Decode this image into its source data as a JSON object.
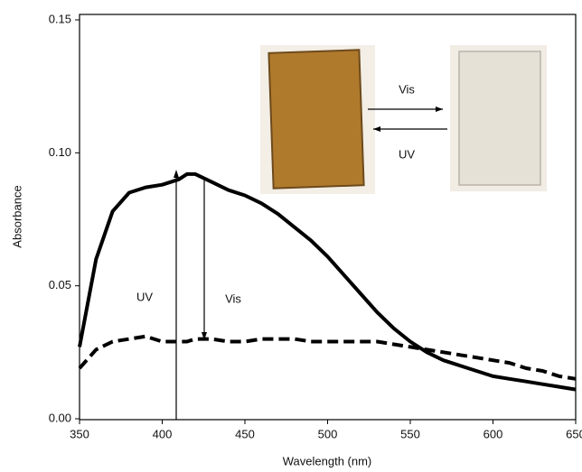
{
  "chart_data": {
    "type": "line",
    "xlabel": "Wavelength (nm)",
    "ylabel": "Absorbance",
    "x": [
      350,
      360,
      370,
      380,
      390,
      400,
      410,
      415,
      420,
      430,
      440,
      450,
      460,
      470,
      480,
      490,
      500,
      510,
      520,
      530,
      540,
      550,
      560,
      570,
      580,
      590,
      600,
      610,
      620,
      630,
      640,
      650
    ],
    "series": [
      {
        "color": "#000000",
        "line_style": "solid",
        "values": [
          0.027,
          0.06,
          0.078,
          0.085,
          0.087,
          0.088,
          0.09,
          0.092,
          0.092,
          0.089,
          0.086,
          0.084,
          0.081,
          0.077,
          0.072,
          0.067,
          0.061,
          0.054,
          0.047,
          0.04,
          0.034,
          0.029,
          0.025,
          0.022,
          0.02,
          0.018,
          0.016,
          0.015,
          0.014,
          0.013,
          0.012,
          0.011
        ]
      },
      {
        "color": "#000000",
        "line_style": "dashed",
        "values": [
          0.019,
          0.026,
          0.029,
          0.03,
          0.031,
          0.029,
          0.029,
          0.029,
          0.03,
          0.03,
          0.029,
          0.029,
          0.03,
          0.03,
          0.03,
          0.029,
          0.029,
          0.029,
          0.029,
          0.029,
          0.028,
          0.027,
          0.026,
          0.025,
          0.024,
          0.023,
          0.022,
          0.021,
          0.019,
          0.018,
          0.016,
          0.015
        ]
      }
    ],
    "xlim": [
      350,
      650
    ],
    "ylim": [
      0,
      0.15
    ],
    "xticks": [
      350,
      400,
      450,
      500,
      550,
      600,
      650
    ],
    "yticks": [
      {
        "value": 0,
        "label": "0.00"
      },
      {
        "value": 0.05,
        "label": "0.05"
      },
      {
        "value": 0.1,
        "label": "0.10"
      },
      {
        "value": 0.15,
        "label": "0.15"
      }
    ],
    "annotations": [
      "UV",
      "Vis",
      "Vis",
      "UV"
    ]
  }
}
